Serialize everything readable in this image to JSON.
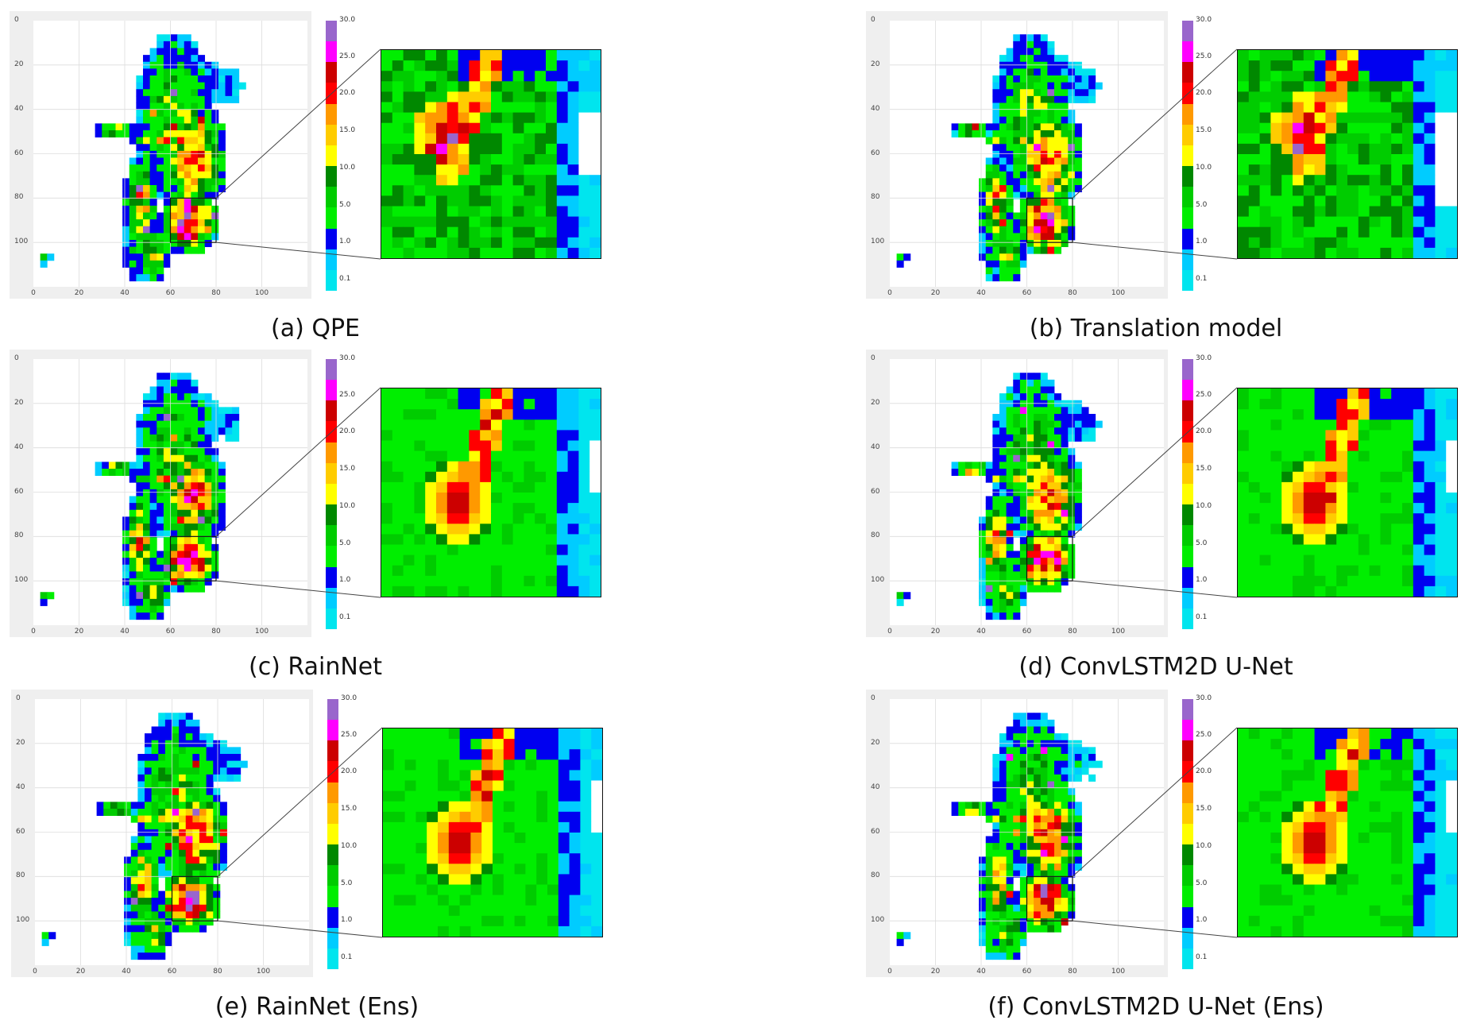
{
  "colors": {
    "scale": [
      "#00e5ee",
      "#00ccff",
      "#0000f0",
      "#00ee00",
      "#00cc00",
      "#008800",
      "#ffff00",
      "#ffcc00",
      "#ff9900",
      "#ff0000",
      "#cc0000",
      "#ff00ff",
      "#9966cc"
    ]
  },
  "colorbar": {
    "labels": [
      "30.0",
      "25.0",
      "20.0",
      "15.0",
      "10.0",
      "5.0",
      "1.0",
      "0.1"
    ]
  },
  "axes": {
    "y_ticks": [
      "0",
      "20",
      "40",
      "60",
      "80",
      "100"
    ],
    "x_ticks": [
      "0",
      "20",
      "40",
      "60",
      "80",
      "100"
    ]
  },
  "panels": [
    {
      "caption": "(a) QPE"
    },
    {
      "caption": "(b) Translation model"
    },
    {
      "caption": "(c) RainNet"
    },
    {
      "caption": "(d) ConvLSTM2D U-Net"
    },
    {
      "caption": "(e) RainNet (Ens)"
    },
    {
      "caption": "(f) ConvLSTM2D U-Net (Ens)"
    }
  ],
  "chart_data": {
    "type": "heatmap",
    "x_range": [
      0,
      120
    ],
    "y_range": [
      0,
      120
    ],
    "colorbar_range": [
      0.1,
      30.0
    ],
    "colorbar_ticks": [
      0.1,
      1.0,
      5.0,
      10.0,
      15.0,
      20.0,
      25.0,
      30.0
    ],
    "inset_region": {
      "x": [
        60,
        80
      ],
      "y": [
        80,
        100
      ]
    },
    "panels": [
      "(a) QPE",
      "(b) Translation model",
      "(c) RainNet",
      "(d) ConvLSTM2D U-Net",
      "(e) RainNet (Ens)",
      "(f) ConvLSTM2D U-Net (Ens)"
    ]
  }
}
